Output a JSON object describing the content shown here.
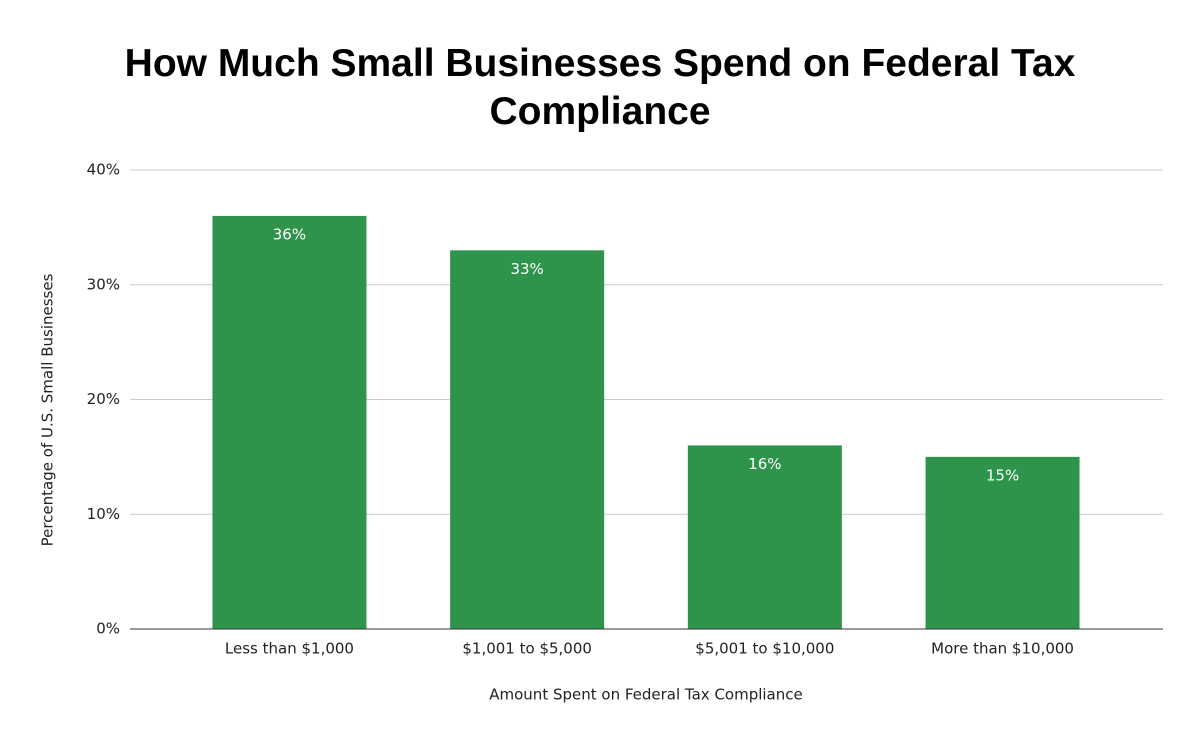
{
  "chart_data": {
    "type": "bar",
    "title": "How Much Small Businesses Spend on Federal Tax Compliance",
    "x_label": "Amount Spent on Federal Tax Compliance",
    "y_label": "Percentage of U.S. Small Businesses",
    "categories": [
      "Less than $1,000",
      "$1,001 to $5,000",
      "$5,001 to $10,000",
      "More than $10,000"
    ],
    "values": [
      36,
      33,
      16,
      15
    ],
    "value_labels": [
      "36%",
      "33%",
      "16%",
      "15%"
    ],
    "color": "#2e934b",
    "ylim": [
      0,
      40
    ],
    "yticks": [
      {
        "value": 0,
        "label": "0%"
      },
      {
        "value": 10,
        "label": "10%"
      },
      {
        "value": 20,
        "label": "20%"
      },
      {
        "value": 30,
        "label": "30%"
      },
      {
        "value": 40,
        "label": "40%"
      }
    ],
    "grid": true
  }
}
